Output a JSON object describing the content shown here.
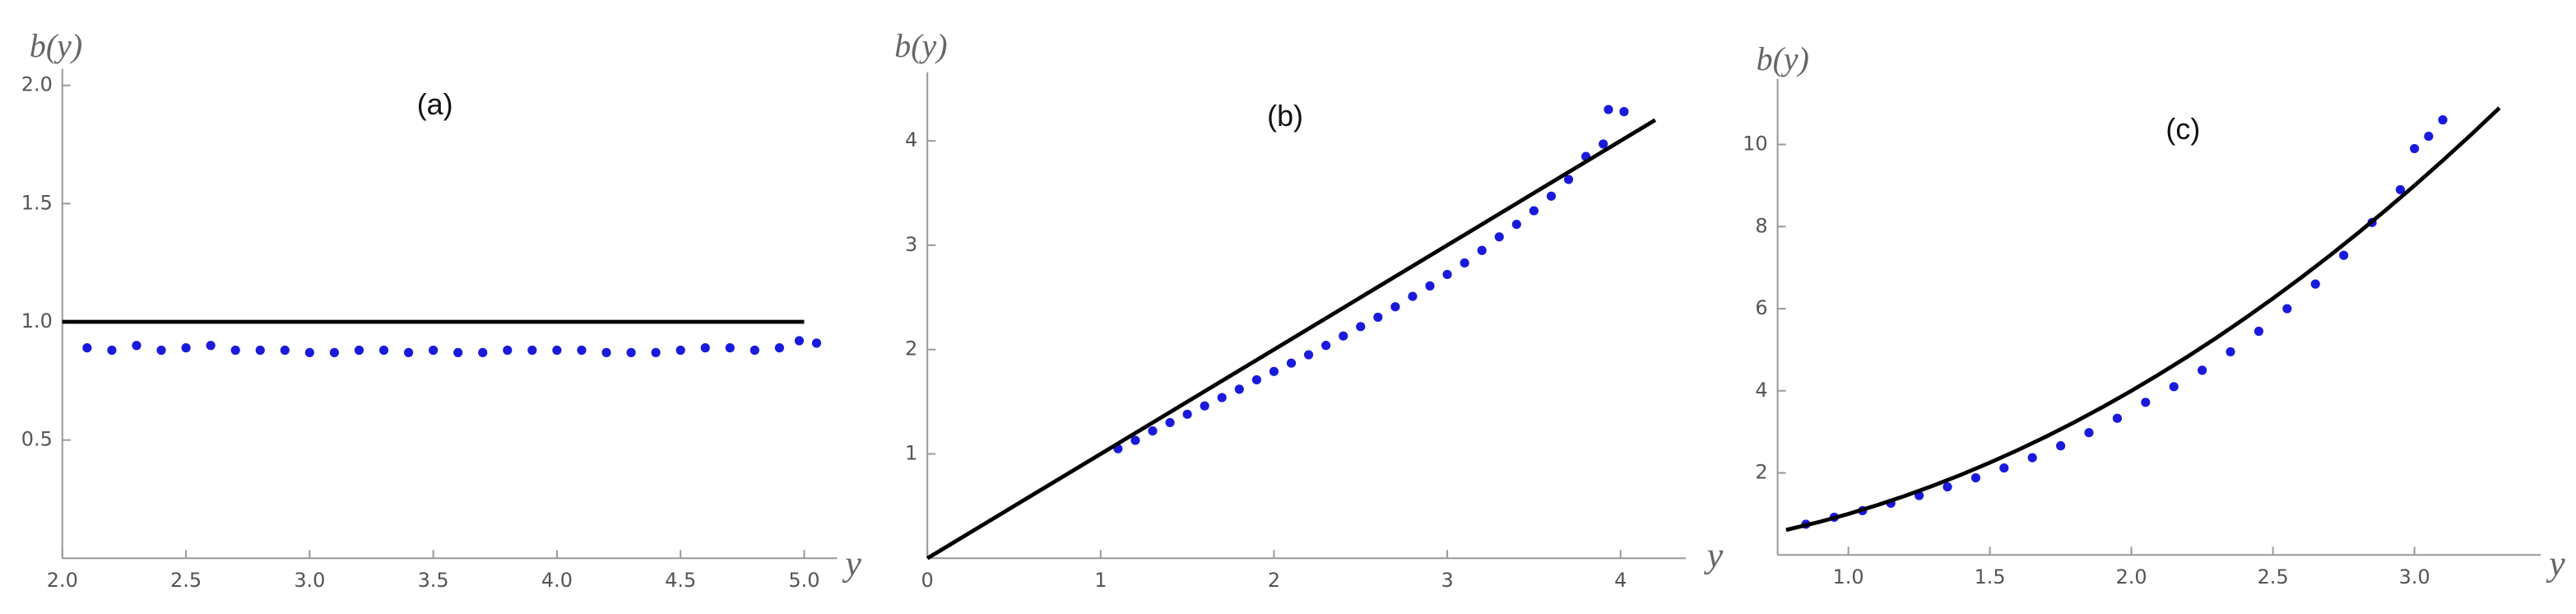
{
  "chart_data": [
    {
      "type": "scatter",
      "annotation": "(a)",
      "ylabel": "b(y)",
      "xlabel": "y",
      "xlim": [
        2.0,
        5.08
      ],
      "ylim": [
        0,
        2.0
      ],
      "xticks": [
        {
          "value": 2.0,
          "label": "2.0"
        },
        {
          "value": 2.5,
          "label": "2.5"
        },
        {
          "value": 3.0,
          "label": "3.0"
        },
        {
          "value": 3.5,
          "label": "3.5"
        },
        {
          "value": 4.0,
          "label": "4.0"
        },
        {
          "value": 4.5,
          "label": "4.5"
        },
        {
          "value": 5.0,
          "label": "5.0"
        }
      ],
      "yticks": [
        0.5,
        {
          "value": 1.0,
          "label": "1.0"
        },
        1.5,
        {
          "value": 2.0,
          "label": "2.0"
        }
      ],
      "series": [
        {
          "mode": "markers",
          "color": "#1a1adb",
          "x": [
            2.1,
            2.2,
            2.3,
            2.4,
            2.5,
            2.6,
            2.7,
            2.8,
            2.9,
            3.0,
            3.1,
            3.2,
            3.3,
            3.4,
            3.5,
            3.6,
            3.7,
            3.8,
            3.9,
            4.0,
            4.1,
            4.2,
            4.3,
            4.4,
            4.5,
            4.6,
            4.7,
            4.8,
            4.9,
            4.98,
            5.05
          ],
          "values": [
            0.89,
            0.88,
            0.9,
            0.88,
            0.89,
            0.9,
            0.88,
            0.88,
            0.88,
            0.87,
            0.87,
            0.88,
            0.88,
            0.87,
            0.88,
            0.87,
            0.87,
            0.88,
            0.88,
            0.88,
            0.88,
            0.87,
            0.87,
            0.87,
            0.88,
            0.89,
            0.89,
            0.88,
            0.89,
            0.92,
            0.91
          ]
        },
        {
          "mode": "line",
          "color": "#000000",
          "x": [
            2.0,
            5.0
          ],
          "values": [
            1.0,
            1.0
          ]
        }
      ]
    },
    {
      "type": "scatter",
      "annotation": "(b)",
      "ylabel": "b(y)",
      "xlabel": "y",
      "xlim": [
        0,
        4.3
      ],
      "ylim": [
        0,
        4.5
      ],
      "xticks": [
        0,
        1,
        2,
        3,
        4
      ],
      "yticks": [
        1,
        2,
        3,
        4
      ],
      "series": [
        {
          "mode": "markers",
          "color": "#1a1adb",
          "x": [
            1.1,
            1.2,
            1.3,
            1.4,
            1.5,
            1.6,
            1.7,
            1.8,
            1.9,
            2.0,
            2.1,
            2.2,
            2.3,
            2.4,
            2.5,
            2.6,
            2.7,
            2.8,
            2.9,
            3.0,
            3.1,
            3.2,
            3.3,
            3.4,
            3.5,
            3.6,
            3.7,
            3.8,
            3.9,
            3.93,
            4.02
          ],
          "values": [
            1.05,
            1.13,
            1.22,
            1.3,
            1.38,
            1.46,
            1.54,
            1.62,
            1.71,
            1.79,
            1.87,
            1.95,
            2.04,
            2.13,
            2.22,
            2.31,
            2.41,
            2.51,
            2.61,
            2.72,
            2.83,
            2.95,
            3.08,
            3.2,
            3.33,
            3.47,
            3.63,
            3.85,
            3.97,
            4.3,
            4.28
          ]
        },
        {
          "mode": "line",
          "color": "#000000",
          "x": [
            0,
            4.2
          ],
          "values": [
            0,
            4.2
          ]
        }
      ]
    },
    {
      "type": "scatter",
      "annotation": "(c)",
      "ylabel": "b(y)",
      "xlabel": "y",
      "xlim": [
        0.75,
        3.4
      ],
      "ylim": [
        0,
        11.2
      ],
      "xticks": [
        {
          "value": 1.0,
          "label": "1.0"
        },
        1.5,
        {
          "value": 2.0,
          "label": "2.0"
        },
        2.5,
        {
          "value": 3.0,
          "label": "3.0"
        }
      ],
      "yticks": [
        2,
        4,
        6,
        8,
        10
      ],
      "series": [
        {
          "mode": "markers",
          "color": "#1a1adb",
          "x": [
            0.85,
            0.95,
            1.05,
            1.15,
            1.25,
            1.35,
            1.45,
            1.55,
            1.65,
            1.75,
            1.85,
            1.95,
            2.05,
            2.15,
            2.25,
            2.35,
            2.45,
            2.55,
            2.65,
            2.75,
            2.85,
            2.95,
            3.0,
            3.05,
            3.1
          ],
          "values": [
            0.75,
            0.92,
            1.08,
            1.26,
            1.45,
            1.66,
            1.88,
            2.12,
            2.37,
            2.66,
            2.98,
            3.33,
            3.72,
            4.1,
            4.5,
            4.95,
            5.45,
            6.0,
            6.6,
            7.3,
            8.1,
            8.9,
            9.9,
            10.2,
            10.6
          ]
        },
        {
          "mode": "line",
          "color": "#000000",
          "x": [
            0.78,
            0.9,
            1.0,
            1.1,
            1.2,
            1.3,
            1.4,
            1.5,
            1.6,
            1.7,
            1.8,
            1.9,
            2.0,
            2.1,
            2.2,
            2.3,
            2.4,
            2.5,
            2.6,
            2.7,
            2.8,
            2.9,
            3.0,
            3.1,
            3.2,
            3.3
          ],
          "values": [
            0.61,
            0.81,
            1.0,
            1.21,
            1.44,
            1.69,
            1.96,
            2.25,
            2.56,
            2.89,
            3.24,
            3.61,
            4.0,
            4.41,
            4.84,
            5.29,
            5.76,
            6.25,
            6.76,
            7.29,
            7.84,
            8.41,
            9.0,
            9.61,
            10.24,
            10.89
          ]
        }
      ]
    }
  ]
}
